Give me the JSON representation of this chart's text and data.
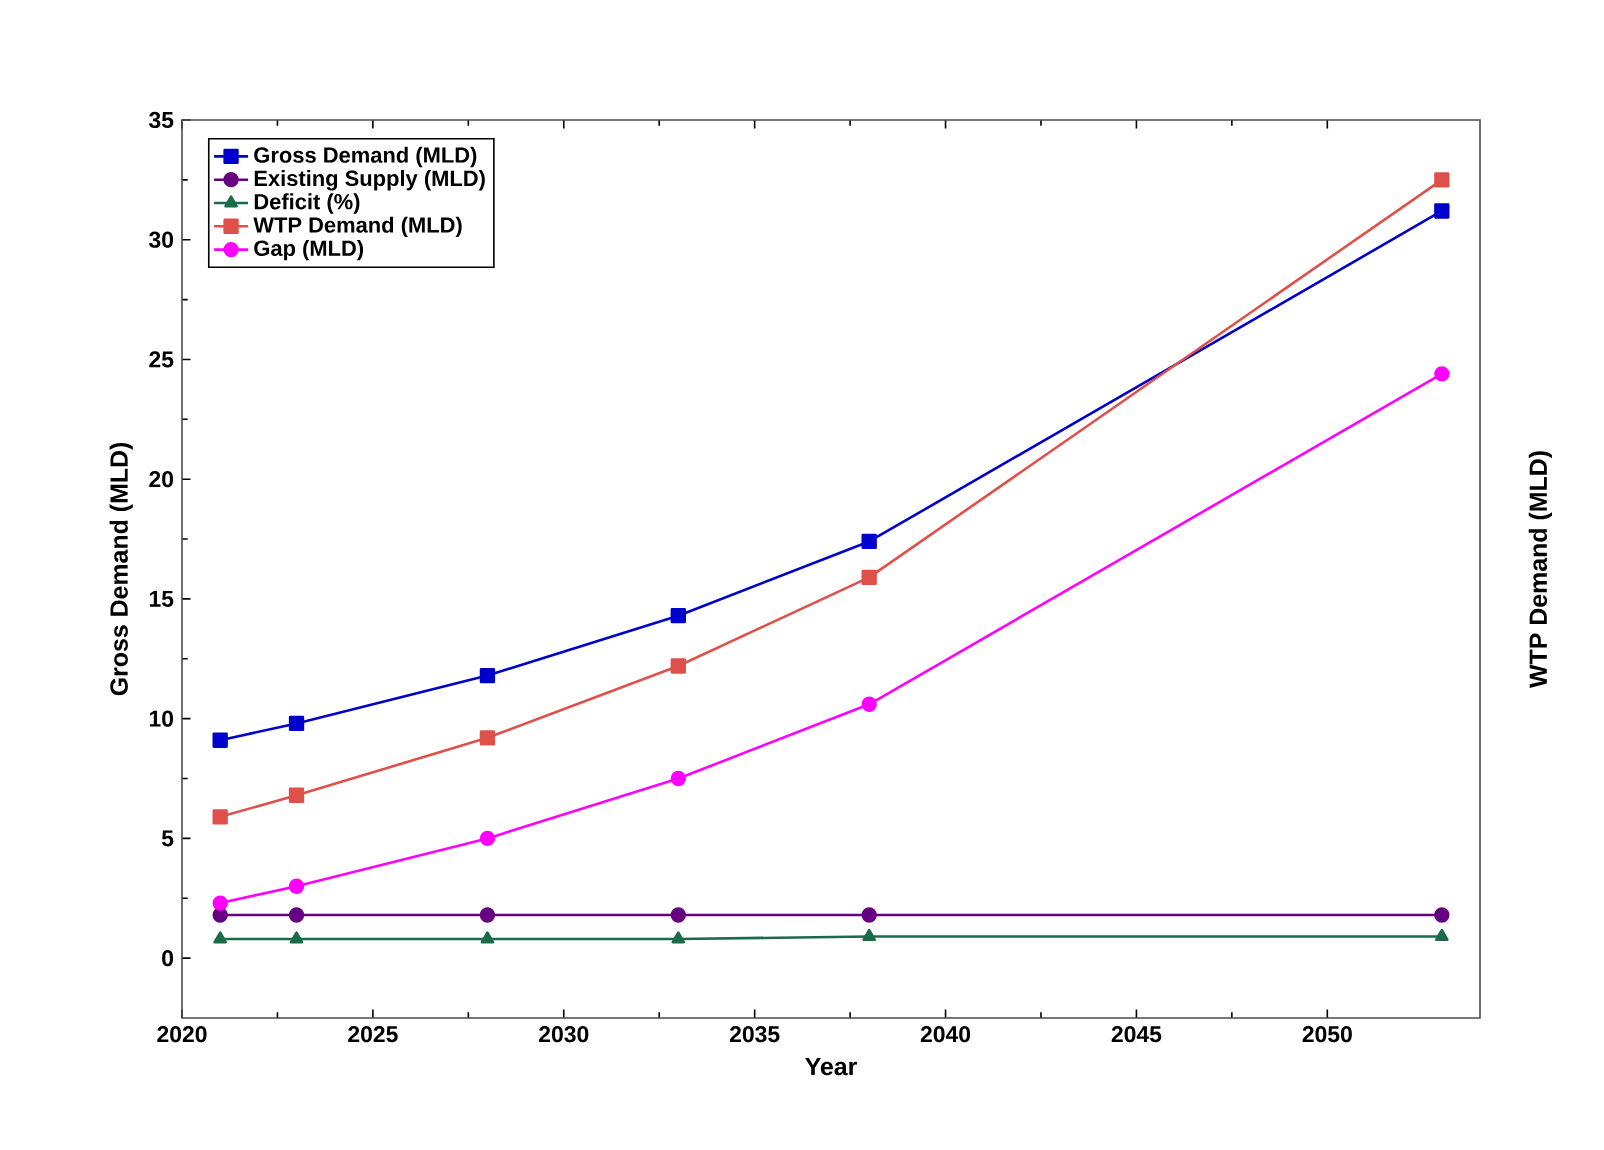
{
  "chart_data": {
    "type": "line",
    "xlabel": "Year",
    "ylabel": "Gross Demand (MLD)",
    "y2label": "WTP Demand (MLD)",
    "xlim": [
      2020,
      2054
    ],
    "ylim": [
      -2.5,
      35
    ],
    "xticks": [
      2020,
      2025,
      2030,
      2035,
      2040,
      2045,
      2050
    ],
    "yticks": [
      0,
      5,
      10,
      15,
      20,
      25,
      30,
      35
    ],
    "x": [
      2021,
      2023,
      2028,
      2033,
      2038,
      2053
    ],
    "grid": false,
    "legend": "top left",
    "line_style": "solid",
    "series": [
      {
        "name": "Gross Demand (MLD)",
        "color": "#0000cc",
        "marker": "square",
        "values": [
          9.1,
          9.8,
          11.8,
          14.3,
          17.4,
          31.2
        ]
      },
      {
        "name": "Existing Supply (MLD)",
        "color": "#660080",
        "marker": "circle",
        "values": [
          1.8,
          1.8,
          1.8,
          1.8,
          1.8,
          1.8
        ]
      },
      {
        "name": "Deficit (%)",
        "color": "#1a6b4a",
        "marker": "triangle",
        "values": [
          0.8,
          0.8,
          0.8,
          0.8,
          0.9,
          0.9
        ]
      },
      {
        "name": "WTP Demand (MLD)",
        "color": "#e0504a",
        "marker": "square",
        "values": [
          5.9,
          6.8,
          9.2,
          12.2,
          15.9,
          32.5
        ]
      },
      {
        "name": "Gap (MLD)",
        "color": "#ff00ff",
        "marker": "circle",
        "values": [
          2.3,
          3.0,
          5.0,
          7.5,
          10.6,
          24.4
        ]
      }
    ]
  }
}
